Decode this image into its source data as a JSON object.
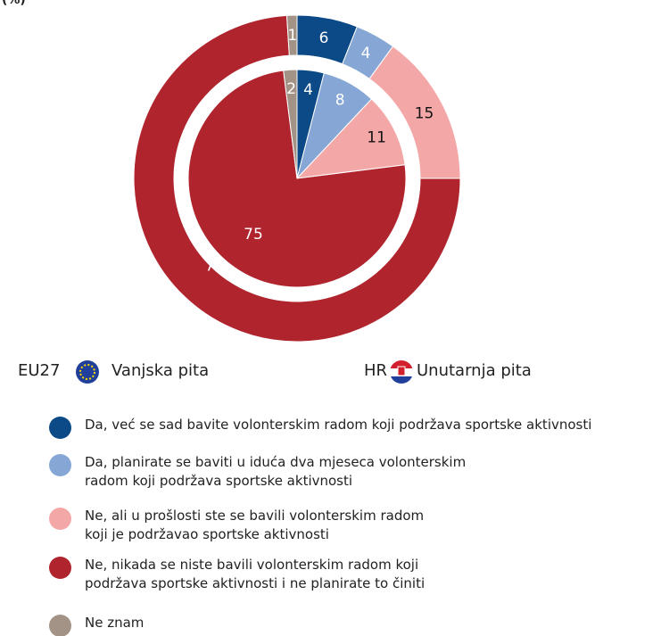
{
  "chart_data": {
    "type": "nested-pie",
    "title": "(%)",
    "categories": [
      "Da, već se sad bavite volonterskim radom koji podržava sportske aktivnosti",
      "Da, planirate se baviti u iduća dva mjeseca volonterskim\nradom koji podržava sportske aktivnosti",
      "Ne, ali u prošlosti ste se bavili volonterskim radom\nkoji je podržavao sportske aktivnosti",
      "Ne, nikada se niste bavili volonterskim radom koji\npodržava sportske aktivnosti i ne planirate to činiti",
      "Ne znam"
    ],
    "colors": [
      "#0b4a86",
      "#86a7d5",
      "#f4a7a7",
      "#b0242d",
      "#a29386"
    ],
    "series": [
      {
        "name": "EU27",
        "caption": "Vanjska pita",
        "values": [
          6,
          4,
          15,
          74,
          1
        ]
      },
      {
        "name": "HR",
        "caption": "Unutarnja pita",
        "values": [
          4,
          8,
          11,
          75,
          2
        ]
      }
    ]
  }
}
